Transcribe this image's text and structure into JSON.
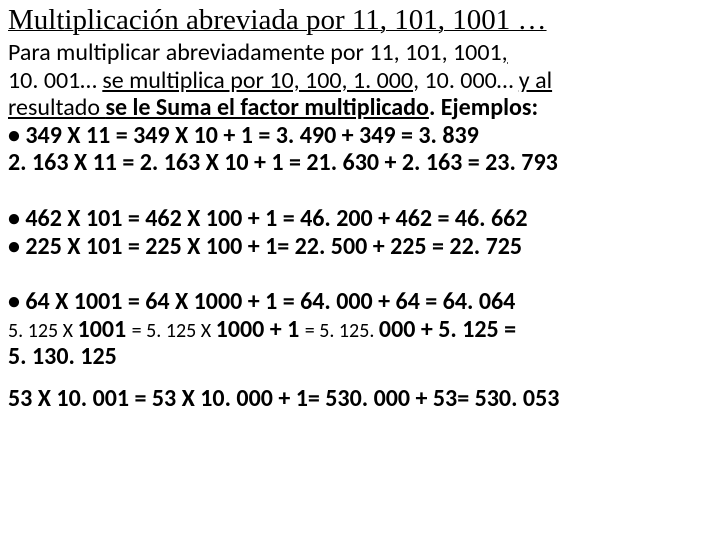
{
  "title": "Multiplicación abreviada por 11, 101, 1001    …",
  "intro": {
    "l1a": "Para multiplicar abreviadamente  por 11, 101, 1001",
    "l1b": ",",
    "l2a": "10. 001… ",
    "l2b": "se multiplica por 10, 100, 1. 000",
    "l2c": ", 10. 000… ",
    "l2d": "y al",
    "l3a": "resultado ",
    "l3b": "se le Suma el  factor multiplicado",
    "l3c": ".     Ejemplos:"
  },
  "ex": {
    "a": "•    349 X 11 = 349 X 10 + 1  = 3. 490 + 349 =  3. 839",
    "b": "2. 163 X 11 = 2. 163 X 10 + 1 = 21. 630 + 2. 163 = 23. 793",
    "c": "•  462 X 101 = 462 X 100 + 1 =  46. 200 + 462 = 46. 662",
    "d": "•  225 X 101 = 225 X  100 + 1=  22. 500 + 225 = 22. 725",
    "e": "•  64 X 1001 = 64 X 1000 + 1 =  64. 000 + 64 =  64. 064",
    "f1": "5. 125 X ",
    "f2": "1001 ",
    "f3": "= 5. 125 X ",
    "f4": "1000 + 1 ",
    "f5": "= 5. 125. ",
    "f6": "000 + 5. 125 =",
    "f7": "5. 130. 125",
    "g": "53 X 10. 001 = 53 X 10. 000 + 1= 530. 000 + 53= 530. 053"
  }
}
